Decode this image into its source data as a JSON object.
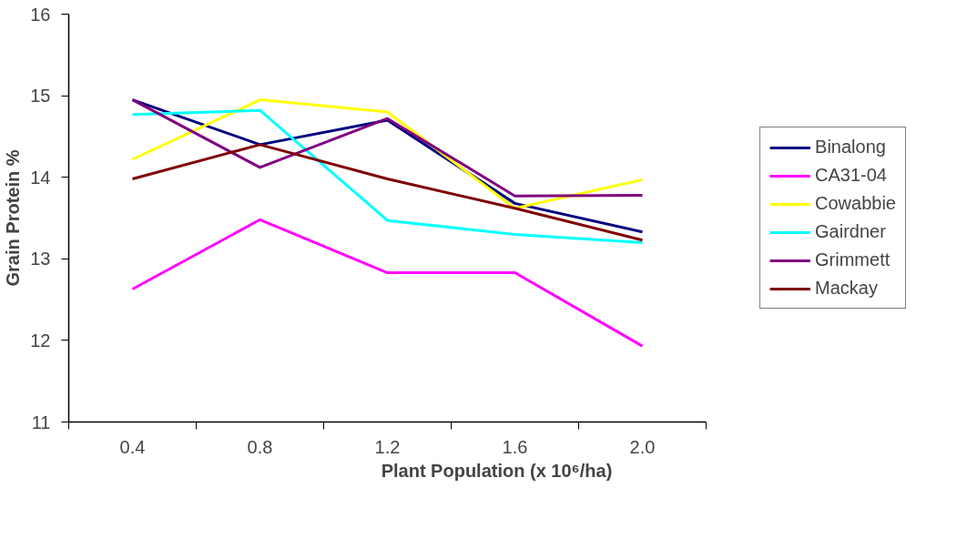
{
  "chart_data": {
    "type": "line",
    "xlabel": "Plant Population (x 10⁶/ha)",
    "ylabel": "Grain Protein %",
    "categories": [
      "0.4",
      "0.8",
      "1.2",
      "1.6",
      "2.0"
    ],
    "series": [
      {
        "name": "Binalong",
        "color": "#000080",
        "values": [
          14.95,
          14.4,
          14.7,
          13.68,
          13.33
        ]
      },
      {
        "name": "CA31-04",
        "color": "#ff00ff",
        "values": [
          12.63,
          13.48,
          12.83,
          12.83,
          11.93
        ]
      },
      {
        "name": "Cowabbie",
        "color": "#ffff00",
        "values": [
          14.22,
          14.95,
          14.8,
          13.62,
          13.97
        ]
      },
      {
        "name": "Gairdner",
        "color": "#00ffff",
        "values": [
          14.77,
          14.82,
          13.47,
          13.3,
          13.2
        ]
      },
      {
        "name": "Grimmett",
        "color": "#800080",
        "values": [
          14.95,
          14.12,
          14.72,
          13.77,
          13.78
        ]
      },
      {
        "name": "Mackay",
        "color": "#800000",
        "values": [
          13.98,
          14.4,
          13.98,
          13.62,
          13.23
        ]
      }
    ],
    "ylim": [
      11,
      16
    ],
    "yticks": [
      11,
      12,
      13,
      14,
      15,
      16
    ],
    "grid": false,
    "legend": "right",
    "marker": "none",
    "line_style": "solid"
  }
}
